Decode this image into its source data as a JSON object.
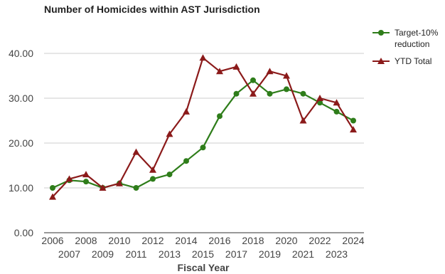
{
  "chart_data": {
    "type": "line",
    "title": "Number of Homicides within AST Jurisdiction",
    "xlabel": "Fiscal Year",
    "ylabel": "",
    "x": [
      "2006",
      "2007",
      "2008",
      "2009",
      "2010",
      "2011",
      "2012",
      "2013",
      "2014",
      "2015",
      "2016",
      "2017",
      "2018",
      "2019",
      "2020",
      "2021",
      "2022",
      "2023",
      "2024"
    ],
    "ylim": [
      0,
      40
    ],
    "yticks": [
      "0.00",
      "10.00",
      "20.00",
      "30.00",
      "40.00"
    ],
    "grid": true,
    "legend": "right",
    "series": [
      {
        "name": "Target-10% reduction",
        "name_lines": [
          "Target-10%",
          "reduction"
        ],
        "color": "#2e7d1a",
        "marker": "circle",
        "values": [
          10,
          11.7,
          11.4,
          10,
          11,
          10,
          12,
          13,
          16,
          19,
          26,
          31,
          34,
          31,
          32,
          31,
          29,
          27,
          25
        ]
      },
      {
        "name": "YTD Total",
        "name_lines": [
          "YTD Total"
        ],
        "color": "#8b1a1a",
        "marker": "triangle",
        "values": [
          8,
          12,
          13,
          10,
          11,
          18,
          14,
          22,
          27,
          39,
          36,
          37,
          31,
          36,
          35,
          25,
          30,
          29,
          23
        ]
      }
    ]
  }
}
